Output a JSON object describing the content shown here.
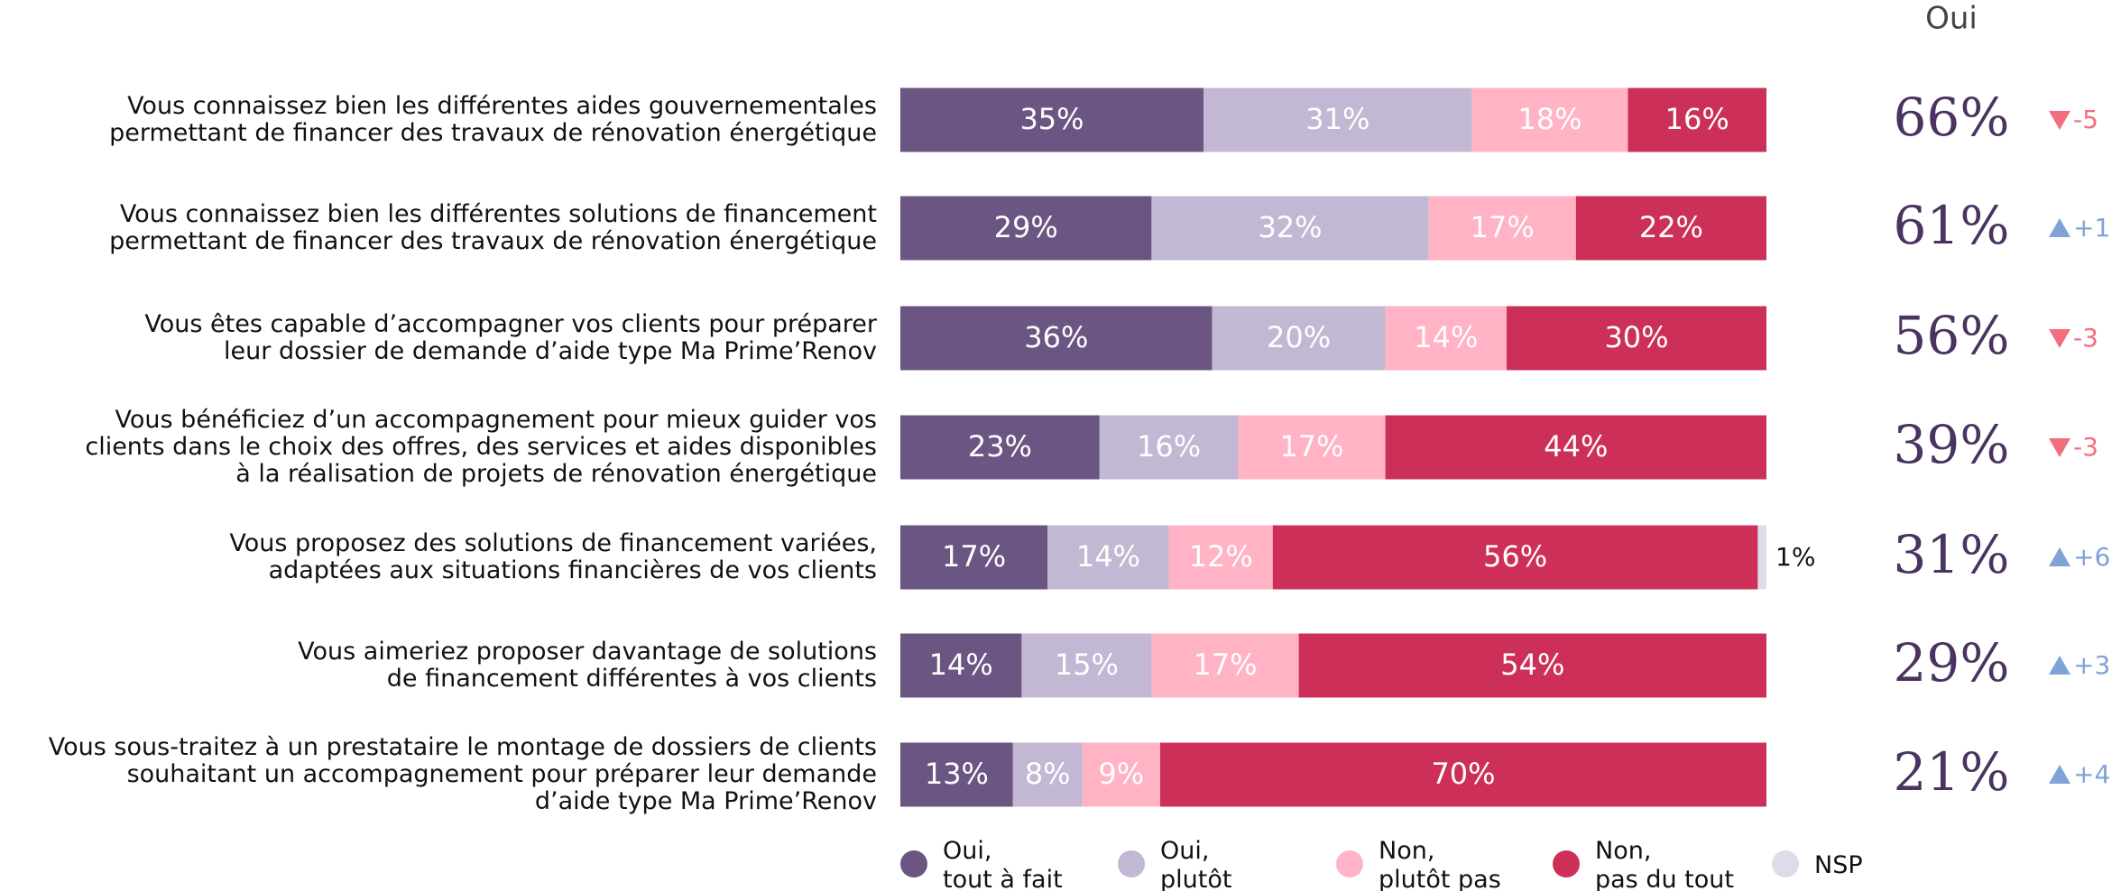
{
  "chart_data": {
    "type": "bar",
    "orientation": "horizontal",
    "stacked": true,
    "xlim": [
      0,
      100
    ],
    "categories": [
      "Vous connaissez bien les différentes aides gouvernementales\npermettant de financer des travaux de rénovation énergétique",
      "Vous connaissez bien les différentes solutions de financement\npermettant de financer des travaux de rénovation énergétique",
      "Vous êtes capable d’accompagner vos clients pour préparer\nleur dossier de demande d’aide type Ma Prime’Renov",
      "Vous bénéficiez d’un accompagnement pour mieux guider vos\nclients dans le choix des offres, des services et aides disponibles\nà la réalisation de projets de rénovation énergétique",
      "Vous proposez des solutions de financement variées,\nadaptées aux situations financières de vos clients",
      "Vous aimeriez proposer davantage de solutions\nde financement différentes à vos clients",
      "Vous sous-traitez à un prestataire le montage de dossiers de clients\nsouhaitant un accompagnement pour préparer leur demande\nd’aide type Ma Prime’Renov"
    ],
    "series": [
      {
        "name": "Oui, tout à fait",
        "color": "#6b5582",
        "values": [
          35,
          29,
          36,
          23,
          17,
          14,
          13
        ],
        "value_labels": [
          "35%",
          "29%",
          "36%",
          "23%",
          "17%",
          "14%",
          "13%"
        ]
      },
      {
        "name": "Oui, plutôt",
        "color": "#c2b8d3",
        "values": [
          31,
          32,
          20,
          16,
          14,
          15,
          8
        ],
        "value_labels": [
          "31%",
          "32%",
          "20%",
          "16%",
          "14%",
          "15%",
          "8%"
        ]
      },
      {
        "name": "Non, plutôt pas",
        "color": "#ffb3c4",
        "values": [
          18,
          17,
          14,
          17,
          12,
          17,
          9
        ],
        "value_labels": [
          "18%",
          "17%",
          "14%",
          "17%",
          "12%",
          "17%",
          "9%"
        ]
      },
      {
        "name": "Non, pas du tout",
        "color": "#cc3059",
        "values": [
          16,
          22,
          30,
          44,
          56,
          54,
          70
        ],
        "value_labels": [
          "16%",
          "22%",
          "30%",
          "44%",
          "56%",
          "54%",
          "70%"
        ]
      },
      {
        "name": "NSP",
        "color": "#dddde9",
        "values": [
          null,
          null,
          null,
          null,
          1,
          null,
          null
        ],
        "value_labels": [
          null,
          null,
          null,
          null,
          "1%",
          null,
          null
        ]
      }
    ],
    "oui_total": {
      "title": "Oui",
      "values": [
        66,
        61,
        56,
        39,
        31,
        29,
        21
      ],
      "value_labels": [
        "66%",
        "61%",
        "56%",
        "39%",
        "31%",
        "29%",
        "21%"
      ]
    },
    "change": {
      "values": [
        -5,
        1,
        -3,
        -3,
        6,
        3,
        4
      ],
      "value_labels": [
        "-5",
        "+1",
        "-3",
        "-3",
        "+6",
        "+3",
        "+4"
      ],
      "up_color": "#7fa3d6",
      "down_color": "#f26d7d"
    },
    "legend": "bottom"
  }
}
